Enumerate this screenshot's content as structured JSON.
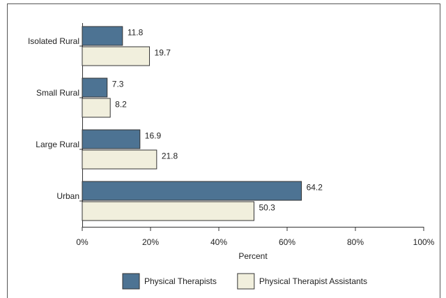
{
  "chart_data": {
    "type": "barh",
    "categories": [
      "Isolated Rural",
      "Small Rural",
      "Large Rural",
      "Urban"
    ],
    "series": [
      {
        "name": "Physical Therapists",
        "color": "#4d7393",
        "values": [
          11.8,
          7.3,
          16.9,
          64.2
        ]
      },
      {
        "name": "Physical Therapist Assistants",
        "color": "#f1efdd",
        "values": [
          19.7,
          8.2,
          21.8,
          50.3
        ]
      }
    ],
    "xlabel": "Percent",
    "xlim": [
      0,
      100
    ],
    "xticks": [
      {
        "value": 0,
        "label": "0%"
      },
      {
        "value": 20,
        "label": "20%"
      },
      {
        "value": 40,
        "label": "40%"
      },
      {
        "value": 60,
        "label": "60%"
      },
      {
        "value": 80,
        "label": "80%"
      },
      {
        "value": 100,
        "label": "100%"
      }
    ],
    "legend": "bottom"
  }
}
